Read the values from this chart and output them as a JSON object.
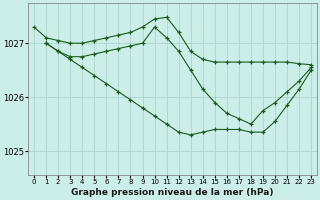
{
  "xlabel": "Graphe pression niveau de la mer (hPa)",
  "bg_color": "#cceee8",
  "grid_color": "#aad4ce",
  "line_color": "#1a5c1a",
  "yticks": [
    1025,
    1026,
    1027
  ],
  "ylim": [
    1024.55,
    1027.75
  ],
  "xlim": [
    -0.5,
    23.5
  ],
  "xticks": [
    0,
    1,
    2,
    3,
    4,
    5,
    6,
    7,
    8,
    9,
    10,
    11,
    12,
    13,
    14,
    15,
    16,
    17,
    18,
    19,
    20,
    21,
    22,
    23
  ],
  "series": [
    {
      "x": [
        0,
        1,
        2,
        3,
        4,
        5,
        6,
        7,
        8,
        9,
        10,
        11,
        12,
        13,
        14,
        15,
        16,
        17,
        18,
        19,
        20,
        21,
        22,
        23
      ],
      "y": [
        1027.3,
        1027.1,
        1027.05,
        1027.0,
        1027.0,
        1027.05,
        1027.1,
        1027.15,
        1027.2,
        1027.3,
        1027.45,
        1027.48,
        1027.2,
        1026.85,
        1026.7,
        1026.65,
        1026.65,
        1026.65,
        1026.65,
        1026.65,
        1026.65,
        1026.65,
        1026.62,
        1026.6
      ]
    },
    {
      "x": [
        1,
        2,
        3,
        4,
        5,
        6,
        7,
        8,
        9,
        10,
        11,
        12,
        13,
        14,
        15,
        16,
        17,
        18,
        19,
        20,
        21,
        22,
        23
      ],
      "y": [
        1027.0,
        1026.85,
        1026.75,
        1026.75,
        1026.8,
        1026.85,
        1026.9,
        1026.95,
        1027.0,
        1027.3,
        1027.1,
        1026.85,
        1026.5,
        1026.15,
        1025.9,
        1025.7,
        1025.6,
        1025.5,
        1025.75,
        1025.9,
        1026.1,
        1026.3,
        1026.55
      ]
    },
    {
      "x": [
        1,
        2,
        3,
        4,
        5,
        6,
        7,
        8,
        9,
        10,
        11,
        12,
        13,
        14,
        15,
        16,
        17,
        18,
        19,
        20,
        21,
        22,
        23
      ],
      "y": [
        1027.0,
        1026.85,
        1026.7,
        1026.55,
        1026.4,
        1026.25,
        1026.1,
        1025.95,
        1025.8,
        1025.65,
        1025.5,
        1025.35,
        1025.3,
        1025.35,
        1025.4,
        1025.4,
        1025.4,
        1025.35,
        1025.35,
        1025.55,
        1025.85,
        1026.15,
        1026.5
      ]
    }
  ]
}
